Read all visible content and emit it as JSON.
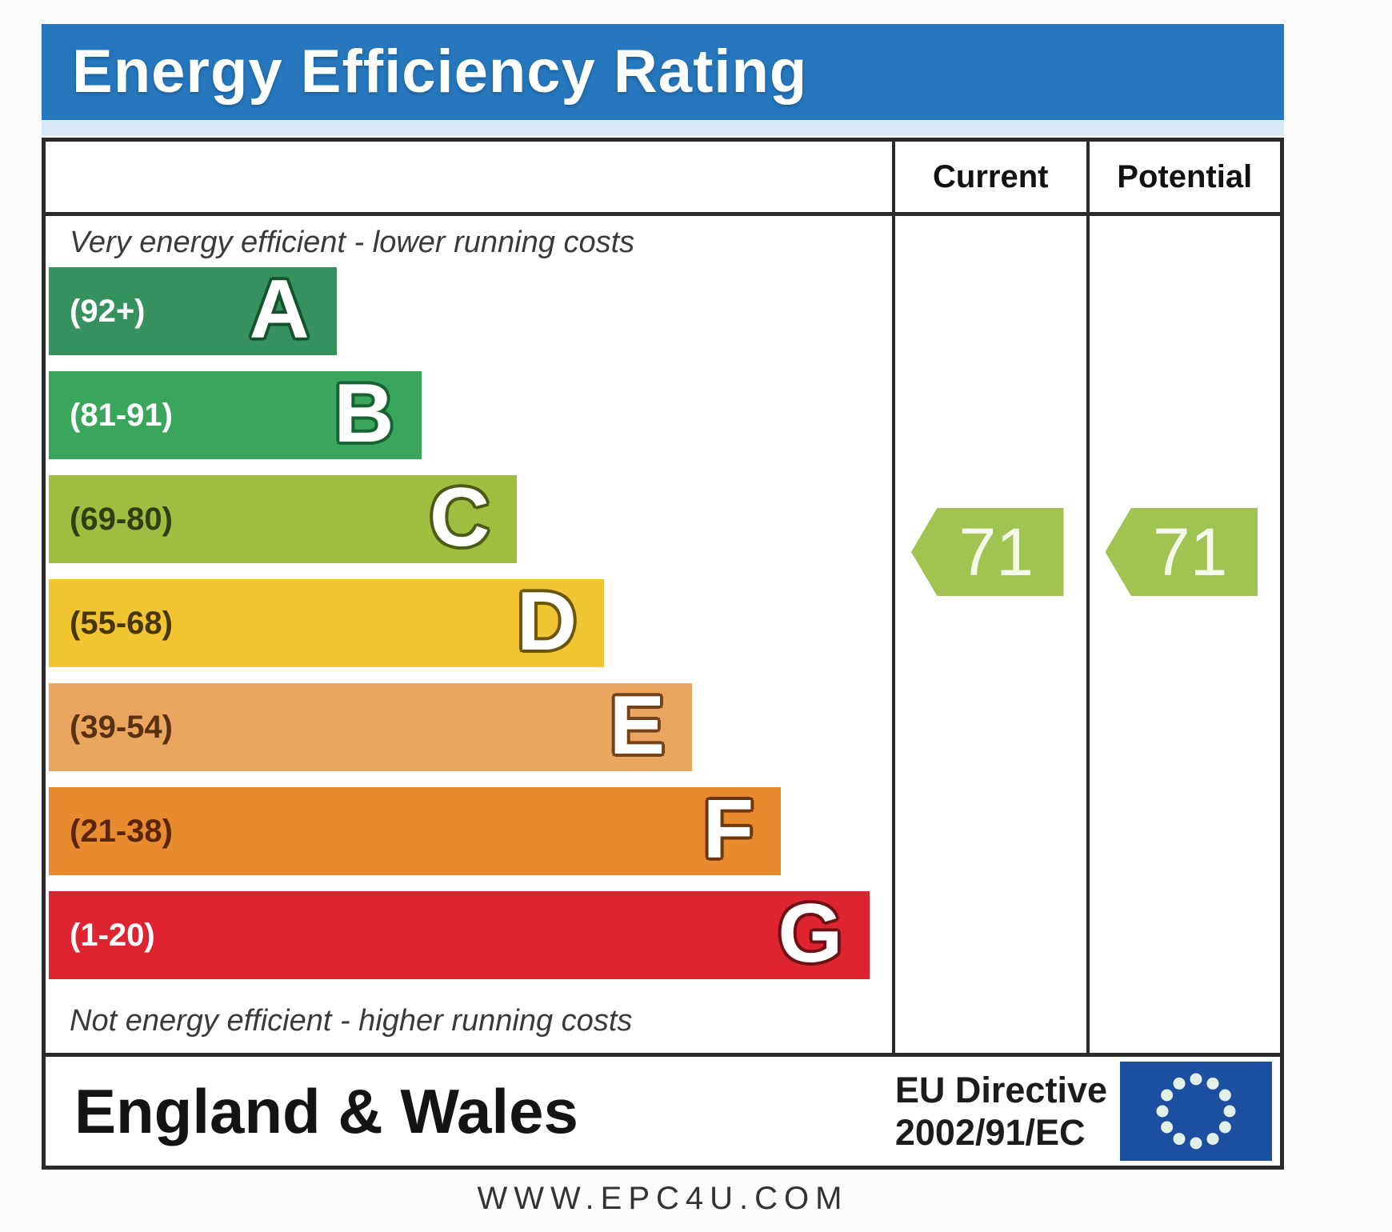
{
  "title_bar": {
    "text": "Energy Efficiency Rating",
    "bg": "#2677bd",
    "strip": "#d8eaf6",
    "text_color": "#ffffff"
  },
  "columns": {
    "current": "Current",
    "potential": "Potential"
  },
  "notes": {
    "top": "Very energy efficient - lower running costs",
    "bottom": "Not energy efficient - higher running costs"
  },
  "bands": [
    {
      "letter": "A",
      "range": "(92+)",
      "color": "#35915e",
      "width_pct": 34,
      "range_color": "#ffffff",
      "letter_outline": "#14532e"
    },
    {
      "letter": "B",
      "range": "(81-91)",
      "color": "#3aa65c",
      "width_pct": 44,
      "range_color": "#ffffff",
      "letter_outline": "#176334"
    },
    {
      "letter": "C",
      "range": "(69-80)",
      "color": "#9fbe3f",
      "width_pct": 55.3,
      "range_color": "#333d12",
      "letter_outline": "#4c5a14"
    },
    {
      "letter": "D",
      "range": "(55-68)",
      "color": "#f1c431",
      "width_pct": 65.6,
      "range_color": "#473607",
      "letter_outline": "#6b5608"
    },
    {
      "letter": "E",
      "range": "(39-54)",
      "color": "#eaa55e",
      "width_pct": 76,
      "range_color": "#5a3110",
      "letter_outline": "#74431a"
    },
    {
      "letter": "F",
      "range": "(21-38)",
      "color": "#e88b2f",
      "width_pct": 86.5,
      "range_color": "#5b2507",
      "letter_outline": "#6d370b"
    },
    {
      "letter": "G",
      "range": "(1-20)",
      "color": "#dd2430",
      "width_pct": 97,
      "range_color": "#ffffff",
      "letter_outline": "#6e1016"
    }
  ],
  "ratings": {
    "current": {
      "value": "71",
      "band": "C"
    },
    "potential": {
      "value": "71",
      "band": "C"
    },
    "arrow_color": "#a1c351",
    "value_color": "#f4f9ea"
  },
  "footer": {
    "region": "England & Wales",
    "directive_line1": "EU Directive",
    "directive_line2": "2002/91/EC",
    "eu_flag": {
      "bg": "#1d4fa0",
      "star_color": "#e3f0e9",
      "star_count": 12
    }
  },
  "url": "WWW.EPC4U.COM",
  "border_color": "#2b2b2b",
  "chart_data": {
    "type": "bar",
    "title": "Energy Efficiency Rating",
    "categories": [
      "A",
      "B",
      "C",
      "D",
      "E",
      "F",
      "G"
    ],
    "band_ranges": [
      "92+",
      "81-91",
      "69-80",
      "55-68",
      "39-54",
      "21-38",
      "1-20"
    ],
    "band_colors": [
      "#35915e",
      "#3aa65c",
      "#9fbe3f",
      "#f1c431",
      "#eaa55e",
      "#e88b2f",
      "#dd2430"
    ],
    "bar_lengths_pct": [
      34,
      44,
      55.3,
      65.6,
      76,
      86.5,
      97
    ],
    "series": [
      {
        "name": "Current",
        "value": 71,
        "band": "C"
      },
      {
        "name": "Potential",
        "value": 71,
        "band": "C"
      }
    ],
    "top_annotation": "Very energy efficient - lower running costs",
    "bottom_annotation": "Not energy efficient - higher running costs",
    "region": "England & Wales",
    "directive": "EU Directive 2002/91/EC",
    "source": "WWW.EPC4U.COM",
    "legend_position": "none",
    "grid": false
  }
}
